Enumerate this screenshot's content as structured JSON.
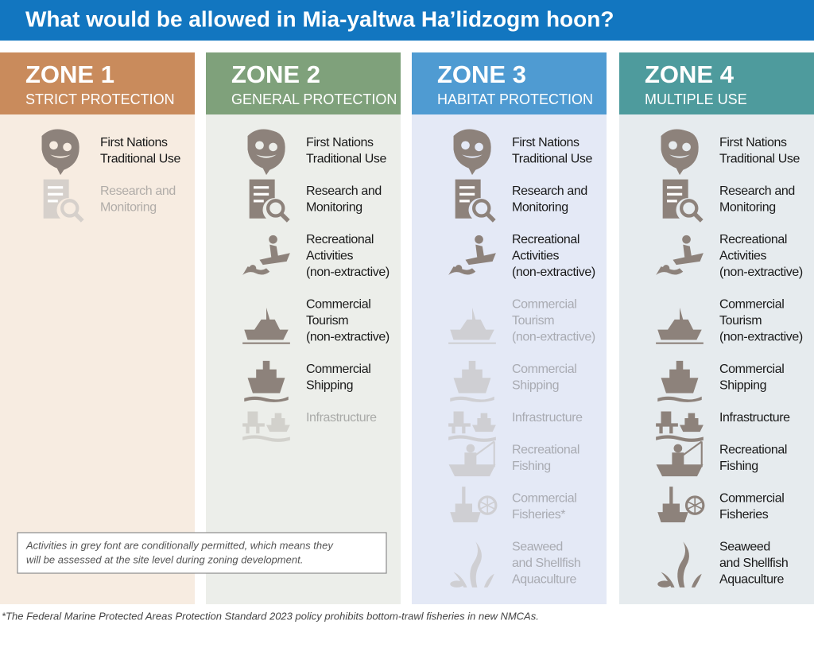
{
  "title": "What would be allowed in Mia-yaltwa Ha’lidzogm hoon?",
  "zones": [
    {
      "name": "ZONE 1",
      "subtitle": "STRICT PROTECTION",
      "header_color": "#c98b5c",
      "body_color": "#f7ece1",
      "activities": [
        {
          "lines": [
            "First Nations",
            "Traditional Use"
          ],
          "color": "#1a1a1a",
          "icon_color": "#8d827b"
        },
        {
          "lines": [
            "Research and",
            "Monitoring"
          ],
          "color": "#b0aca8",
          "icon_color": "#d6d0cb"
        }
      ]
    },
    {
      "name": "ZONE 2",
      "subtitle": "GENERAL PROTECTION",
      "header_color": "#7fa17b",
      "body_color": "#eceeea",
      "activities": [
        {
          "lines": [
            "First Nations",
            "Traditional Use"
          ],
          "color": "#1a1a1a",
          "icon_color": "#8d827b"
        },
        {
          "lines": [
            "Research and",
            "Monitoring"
          ],
          "color": "#1a1a1a",
          "icon_color": "#8d827b"
        },
        {
          "lines": [
            "Recreational",
            "Activities",
            "(non-extractive)"
          ],
          "color": "#1a1a1a",
          "icon_color": "#8d827b"
        },
        {
          "lines": [
            "Commercial",
            "Tourism",
            "(non-extractive)"
          ],
          "color": "#1a1a1a",
          "icon_color": "#8d827b"
        },
        {
          "lines": [
            "Commercial",
            "Shipping"
          ],
          "color": "#1a1a1a",
          "icon_color": "#8d827b"
        },
        {
          "lines": [
            "Infrastructure"
          ],
          "color": "#a9aaa8",
          "icon_color": "#d2d1cc"
        }
      ]
    },
    {
      "name": "ZONE 3",
      "subtitle": "HABITAT PROTECTION",
      "header_color": "#4f9bd2",
      "body_color": "#e4e9f6",
      "activities": [
        {
          "lines": [
            "First Nations",
            "Traditional Use"
          ],
          "color": "#1a1a1a",
          "icon_color": "#8d827b"
        },
        {
          "lines": [
            "Research and",
            "Monitoring"
          ],
          "color": "#1a1a1a",
          "icon_color": "#8d827b"
        },
        {
          "lines": [
            "Recreational",
            "Activities",
            "(non-extractive)"
          ],
          "color": "#1a1a1a",
          "icon_color": "#8d827b"
        },
        {
          "lines": [
            "Commercial",
            "Tourism",
            "(non-extractive)"
          ],
          "color": "#a9abb2",
          "icon_color": "#cfcfd3"
        },
        {
          "lines": [
            "Commercial",
            "Shipping"
          ],
          "color": "#a9abb2",
          "icon_color": "#cfcfd3"
        },
        {
          "lines": [
            "Infrastructure"
          ],
          "color": "#a9abb2",
          "icon_color": "#cfcfd3"
        },
        {
          "lines": [
            "Recreational",
            "Fishing"
          ],
          "color": "#a9abb2",
          "icon_color": "#cfcfd3"
        },
        {
          "lines": [
            "Commercial",
            "Fisheries*"
          ],
          "color": "#a9abb2",
          "icon_color": "#cfcfd3"
        },
        {
          "lines": [
            "Seaweed",
            "and Shellfish",
            "Aquaculture"
          ],
          "color": "#a9abb2",
          "icon_color": "#cfcfd3"
        }
      ]
    },
    {
      "name": "ZONE 4",
      "subtitle": "MULTIPLE USE",
      "header_color": "#4e9b9d",
      "body_color": "#e6ebee",
      "activities": [
        {
          "lines": [
            "First Nations",
            "Traditional Use"
          ],
          "color": "#1a1a1a",
          "icon_color": "#8d827b"
        },
        {
          "lines": [
            "Research and",
            "Monitoring"
          ],
          "color": "#1a1a1a",
          "icon_color": "#8d827b"
        },
        {
          "lines": [
            "Recreational",
            "Activities",
            "(non-extractive)"
          ],
          "color": "#1a1a1a",
          "icon_color": "#8d827b"
        },
        {
          "lines": [
            "Commercial",
            "Tourism",
            "(non-extractive)"
          ],
          "color": "#1a1a1a",
          "icon_color": "#8d827b"
        },
        {
          "lines": [
            "Commercial",
            "Shipping"
          ],
          "color": "#1a1a1a",
          "icon_color": "#8d827b"
        },
        {
          "lines": [
            "Infrastructure"
          ],
          "color": "#1a1a1a",
          "icon_color": "#8d827b"
        },
        {
          "lines": [
            "Recreational",
            "Fishing"
          ],
          "color": "#1a1a1a",
          "icon_color": "#8d827b"
        },
        {
          "lines": [
            "Commercial",
            "Fisheries"
          ],
          "color": "#1a1a1a",
          "icon_color": "#8d827b"
        },
        {
          "lines": [
            "Seaweed",
            "and Shellfish",
            "Aquaculture"
          ],
          "color": "#1a1a1a",
          "icon_color": "#8d827b"
        }
      ]
    }
  ],
  "note": [
    "Activities in grey font are conditionally permitted, which means they",
    "will be assessed at the site level during zoning development."
  ],
  "footnote": "*The Federal Marine Protected Areas Protection Standard 2023 policy prohibits bottom-trawl fisheries in new NMCAs."
}
